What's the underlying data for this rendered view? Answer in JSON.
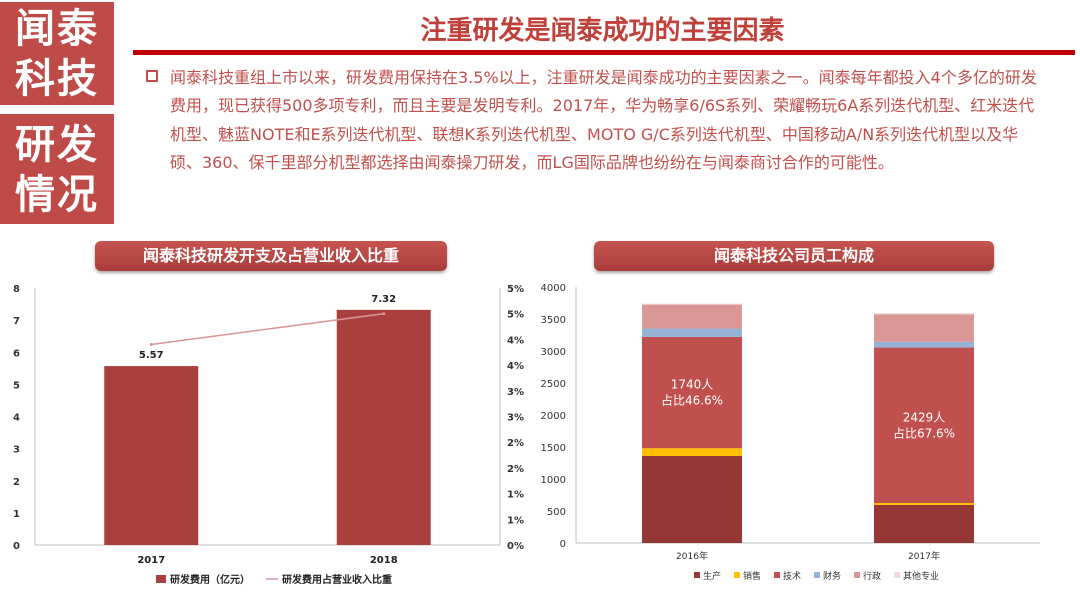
{
  "sidebar": {
    "line1": "闻泰",
    "line2": "科技",
    "line3": "研发",
    "line4": "情况"
  },
  "header": {
    "title": "注重研发是闻泰成功的主要因素"
  },
  "body": {
    "paragraph": "闻泰科技重组上市以来，研发费用保持在3.5%以上，注重研发是闻泰成功的主要因素之一。闻泰每年都投入4个多亿的研发费用，现已获得500多项专利，而且主要是发明专利。2017年，华为畅享6/6S系列、荣耀畅玩6A系列迭代机型、红米迭代机型、魅蓝NOTE和E系列迭代机型、联想K系列迭代机型、MOTO G/C系列迭代机型、中国移动A/N系列迭代机型以及华硕、360、保千里部分机型都选择由闻泰操刀研发，而LG国际品牌也纷纷在与闻泰商讨合作的可能性。"
  },
  "colors": {
    "brand": "#be4b48",
    "bar": "#a9403d",
    "line": "#d99694",
    "production": "#953735",
    "sales": "#ffc000",
    "technical": "#c0504d",
    "finance": "#95b3d7",
    "admin": "#d99795",
    "other": "#f2dcdb"
  },
  "chart_data": [
    {
      "type": "bar+line",
      "title": "闻泰科技研发开支及占营业收入比重",
      "categories": [
        "2017",
        "2018"
      ],
      "series": [
        {
          "name": "研发费用（亿元）",
          "kind": "bar",
          "axis": "left",
          "values": [
            5.57,
            7.32
          ],
          "labels": [
            "5.57",
            "7.32"
          ]
        },
        {
          "name": "研发费用占营业收入比重",
          "kind": "line",
          "axis": "right",
          "values": [
            3.9,
            4.5
          ]
        }
      ],
      "y_left": {
        "min": 0,
        "max": 8,
        "ticks": [
          "0",
          "1",
          "2",
          "3",
          "4",
          "5",
          "6",
          "7",
          "8"
        ]
      },
      "y_right": {
        "min": 0,
        "max": 5,
        "ticks": [
          "0%",
          "1%",
          "1%",
          "2%",
          "2%",
          "3%",
          "3%",
          "4%",
          "4%",
          "5%",
          "5%"
        ]
      },
      "legend": [
        "研发费用（亿元）",
        "研发费用占营业收入比重"
      ]
    },
    {
      "type": "stacked-bar",
      "title": "闻泰科技公司员工构成",
      "categories": [
        "2016年",
        "2017年"
      ],
      "series": [
        {
          "name": "生产",
          "values": [
            1360,
            595
          ]
        },
        {
          "name": "销售",
          "values": [
            120,
            30
          ]
        },
        {
          "name": "技术",
          "values": [
            1740,
            2429
          ]
        },
        {
          "name": "财务",
          "values": [
            130,
            90
          ]
        },
        {
          "name": "行政",
          "values": [
            375,
            430
          ]
        },
        {
          "name": "其他专业",
          "values": [
            15,
            20
          ]
        }
      ],
      "annotations": [
        {
          "line1": "1740人",
          "line2": "占比46.6%"
        },
        {
          "line1": "2429人",
          "line2": "占比67.6%"
        }
      ],
      "y": {
        "min": 0,
        "max": 4000,
        "ticks": [
          "0",
          "500",
          "1000",
          "1500",
          "2000",
          "2500",
          "3000",
          "3500",
          "4000"
        ]
      },
      "legend": [
        "生产",
        "销售",
        "技术",
        "财务",
        "行政",
        "其他专业"
      ]
    }
  ]
}
